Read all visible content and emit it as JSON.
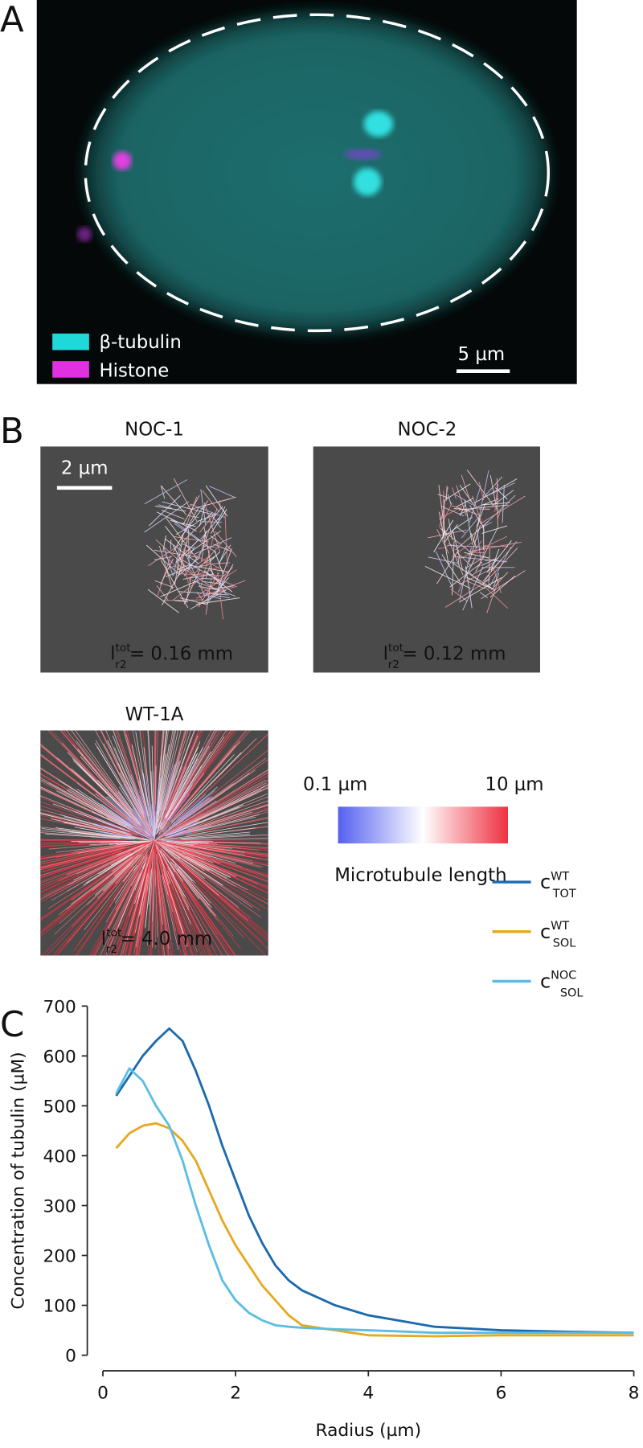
{
  "panels": {
    "A": {
      "label": "A",
      "legend": [
        "β-tubulin",
        "Histone"
      ],
      "scale_bar": "5 µm"
    },
    "B": {
      "label": "B",
      "scale_bar": "2 µm",
      "views": [
        {
          "title": "NOC-1",
          "l": "l",
          "sup": "tot",
          "sub": "r2",
          "text": "= 0.16 mm"
        },
        {
          "title": "NOC-2",
          "l": "l",
          "sup": "tot",
          "sub": "r2",
          "text": "= 0.12 mm"
        },
        {
          "title": "WT-1A",
          "l": "l",
          "sup": "tot",
          "sub": "r2",
          "text": "= 4.0 mm"
        }
      ],
      "colorbar": {
        "min_label": "0.1 µm",
        "max_label": "10 µm",
        "title": "Microtubule length"
      }
    },
    "C": {
      "label": "C"
    }
  },
  "chart_data": {
    "type": "line",
    "xlabel": "Radius (µm)",
    "ylabel": "Concentration of tubulin (µM)",
    "x": [
      0.2,
      0.4,
      0.6,
      0.8,
      1.0,
      1.2,
      1.4,
      1.6,
      1.8,
      2.0,
      2.2,
      2.4,
      2.6,
      2.8,
      3.0,
      3.5,
      4,
      5,
      6,
      7,
      8
    ],
    "series": [
      {
        "name": "c",
        "sup": "WT",
        "sub": "TOT",
        "color": "#1c6aae",
        "values": [
          520,
          560,
          600,
          630,
          655,
          630,
          570,
          500,
          420,
          350,
          280,
          225,
          180,
          150,
          130,
          100,
          80,
          57,
          50,
          47,
          45
        ]
      },
      {
        "name": "c",
        "sup": "WT",
        "sub": "SOL",
        "color": "#e6a91f",
        "values": [
          415,
          445,
          460,
          465,
          455,
          430,
          390,
          330,
          270,
          220,
          180,
          140,
          110,
          80,
          60,
          50,
          40,
          38,
          40,
          40,
          40
        ]
      },
      {
        "name": "c",
        "sup": "NOC",
        "sub": "SOL",
        "color": "#5bbde4",
        "values": [
          525,
          575,
          550,
          500,
          460,
          390,
          300,
          220,
          150,
          110,
          85,
          70,
          60,
          57,
          55,
          52,
          50,
          45,
          45,
          45,
          45
        ]
      }
    ],
    "xlim": [
      0,
      8
    ],
    "xticks": [
      0,
      2,
      4,
      6,
      8
    ],
    "ylim": [
      0,
      700
    ],
    "yticks": [
      0,
      100,
      200,
      300,
      400,
      500,
      600,
      700
    ]
  }
}
